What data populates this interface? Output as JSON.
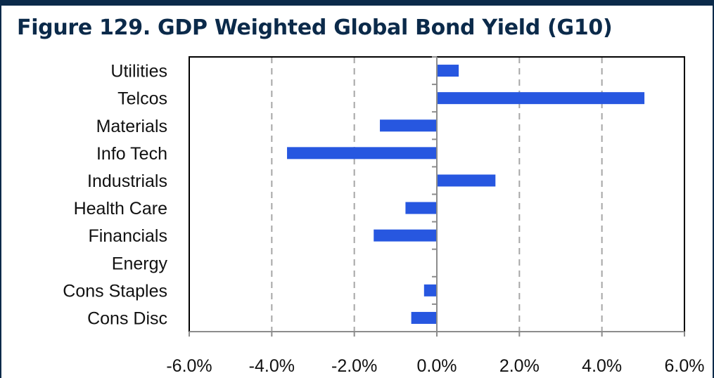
{
  "chart_data": {
    "type": "bar",
    "orientation": "horizontal",
    "title": "Figure 129. GDP Weighted Global Bond Yield (G10)",
    "categories": [
      "Utilities",
      "Telcos",
      "Materials",
      "Info Tech",
      "Industrials",
      "Health Care",
      "Financials",
      "Energy",
      "Cons Staples",
      "Cons Disc"
    ],
    "values": [
      0.53,
      5.03,
      -1.38,
      -3.63,
      1.42,
      -0.76,
      -1.53,
      0.0,
      -0.31,
      -0.62
    ],
    "xlim": [
      -6,
      6
    ],
    "xticks": [
      -6,
      -4,
      -2,
      0,
      2,
      4,
      6
    ],
    "xtick_labels": [
      "-6.0%",
      "-4.0%",
      "-2.0%",
      "0.0%",
      "2.0%",
      "4.0%",
      "6.0%"
    ],
    "grid": "vertical dashed",
    "bar_color": "#2757e0"
  }
}
